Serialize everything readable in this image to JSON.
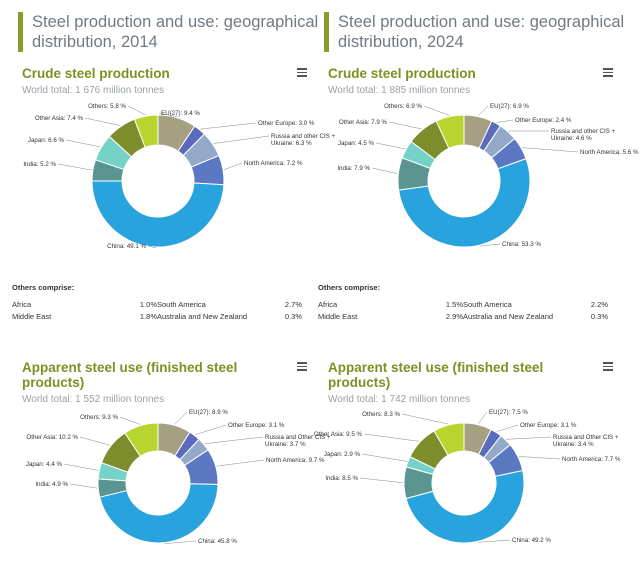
{
  "panels": [
    {
      "header": "Steel production and use: geographical distribution, 2014",
      "production": {
        "title": "Crude steel production",
        "subtitle": "World total: 1 676 million tonnes",
        "chart_data": {
          "type": "pie",
          "title": "Crude steel production",
          "categories": [
            "EU(27)",
            "Other Europe",
            "Russia and other CIS + Ukraine",
            "North America",
            "China",
            "India",
            "Japan",
            "Other Asia",
            "Others"
          ],
          "values": [
            9.4,
            3.0,
            6.3,
            7.2,
            49.1,
            5.2,
            6.6,
            7.4,
            5.8
          ],
          "labels": [
            "EU(27): 9.4 %",
            "Other Europe: 3.0 %",
            "Russia and other CIS + Ukraine: 6.3 %",
            "North America: 7.2 %",
            "China: 49.1 %",
            "India: 5.2 %",
            "Japan: 6.6 %",
            "Other Asia: 7.4 %",
            "Others: 5.8 %"
          ]
        }
      },
      "others": {
        "title": "Others comprise:",
        "items": [
          {
            "name": "Africa",
            "value": "1.0%"
          },
          {
            "name": "Middle East",
            "value": "1.8%"
          },
          {
            "name": "South America",
            "value": "2.7%"
          },
          {
            "name": "Australia and New Zealand",
            "value": "0.3%"
          }
        ]
      },
      "use": {
        "title": "Apparent steel use (finished steel products)",
        "subtitle": "World total: 1 552 million tonnes",
        "chart_data": {
          "type": "pie",
          "title": "Apparent steel use (finished steel products)",
          "categories": [
            "EU(27)",
            "Other Europe",
            "Russia and Other CIS + Ukraine",
            "North America",
            "China",
            "India",
            "Japan",
            "Other Asia",
            "Others"
          ],
          "values": [
            8.9,
            3.1,
            3.7,
            9.7,
            45.8,
            4.9,
            4.4,
            10.2,
            9.3
          ],
          "labels": [
            "EU(27): 8.9 %",
            "Other Europe: 3.1 %",
            "Russia and Other CIS + Ukraine: 3.7 %",
            "North America: 9.7 %",
            "China: 45.8 %",
            "India: 4.9 %",
            "Japan: 4.4 %",
            "Other Asia: 10.2 %",
            "Others: 9.3 %"
          ]
        }
      }
    },
    {
      "header": "Steel production and use: geographical distribution, 2024",
      "production": {
        "title": "Crude steel production",
        "subtitle": "World total: 1 885 million tonnes",
        "chart_data": {
          "type": "pie",
          "title": "Crude steel production",
          "categories": [
            "EU(27)",
            "Other Europe",
            "Russia and other CIS + Ukraine",
            "North America",
            "China",
            "India",
            "Japan",
            "Other Asia",
            "Others"
          ],
          "values": [
            6.9,
            2.4,
            4.6,
            5.6,
            53.3,
            7.9,
            4.5,
            7.9,
            6.9
          ],
          "labels": [
            "EU(27): 6.9 %",
            "Other Europe: 2.4 %",
            "Russia and other CIS + Ukraine: 4.6 %",
            "North America: 5.6 %",
            "China: 53.3 %",
            "India: 7.9 %",
            "Japan: 4.5 %",
            "Other Asia: 7.9 %",
            "Others: 6.9 %"
          ]
        }
      },
      "others": {
        "title": "Others comprise:",
        "items": [
          {
            "name": "Africa",
            "value": "1.5%"
          },
          {
            "name": "Middle East",
            "value": "2.9%"
          },
          {
            "name": "South America",
            "value": "2.2%"
          },
          {
            "name": "Australia and New Zealand",
            "value": "0.3%"
          }
        ]
      },
      "use": {
        "title": "Apparent steel use (finished steel products)",
        "subtitle": "World total: 1 742 million tonnes",
        "chart_data": {
          "type": "pie",
          "title": "Apparent steel use (finished steel products)",
          "categories": [
            "EU(27)",
            "Other Europe",
            "Russia and Other CIS + Ukraine",
            "North America",
            "China",
            "India",
            "Japan",
            "Other Asia",
            "Others"
          ],
          "values": [
            7.5,
            3.1,
            3.4,
            7.7,
            49.2,
            8.5,
            2.9,
            9.5,
            8.3
          ],
          "labels": [
            "EU(27): 7.5 %",
            "Other Europe: 3.1 %",
            "Russia and Other CIS + Ukraine: 3.4 %",
            "North America: 7.7 %",
            "China: 49.2 %",
            "India: 8.5 %",
            "Japan: 2.9 %",
            "Other Asia: 9.5 %",
            "Others: 8.3 %"
          ]
        }
      }
    }
  ],
  "colors": [
    "#a6a083",
    "#5a6bbd",
    "#93a9c8",
    "#5d78c2",
    "#28a3dd",
    "#5a9591",
    "#76d2c6",
    "#7e8d2c",
    "#b8d42f"
  ]
}
